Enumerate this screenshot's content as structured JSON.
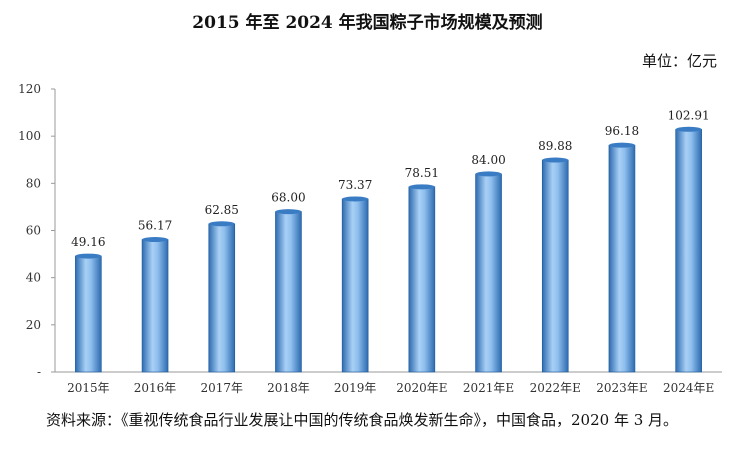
{
  "title": "2015 年至 2024 年我国粽子市场规模及预测",
  "unit": "单位：亿元",
  "source": "资料来源：《重视传统食品行业发展让中国的传统食品焕发新生命》，中国食品，2020 年 3 月。",
  "colors": {
    "bar_dark": "#2d6bb0",
    "bar_mid": "#5b9ee0",
    "bar_light": "#a9d0f5",
    "axis": "#9a9a9a"
  },
  "chart_data": {
    "type": "bar",
    "categories": [
      "2015年",
      "2016年",
      "2017年",
      "2018年",
      "2019年",
      "2020年E",
      "2021年E",
      "2022年E",
      "2023年E",
      "2024年E"
    ],
    "values": [
      49.16,
      56.17,
      62.85,
      68.0,
      73.37,
      78.51,
      84.0,
      89.88,
      96.18,
      102.91
    ],
    "data_labels": [
      "49.16",
      "56.17",
      "62.85",
      "68.00",
      "73.37",
      "78.51",
      "84.00",
      "89.88",
      "96.18",
      "102.91"
    ],
    "yticks": [
      "-",
      "20",
      "40",
      "60",
      "80",
      "100",
      "120"
    ],
    "ylim": [
      0,
      120
    ],
    "grid": false,
    "legend": "none"
  }
}
